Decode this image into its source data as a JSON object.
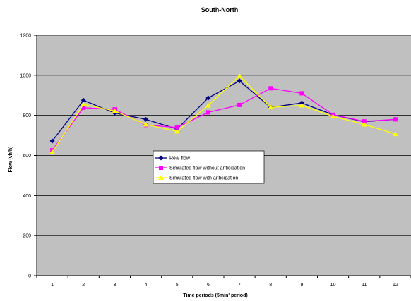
{
  "chart_data": {
    "type": "line",
    "title": "South-North",
    "xlabel": "Time periods (5min' period)",
    "ylabel": "Flow (vh/h)",
    "categories": [
      "1",
      "2",
      "3",
      "4",
      "5",
      "6",
      "7",
      "8",
      "9",
      "10",
      "11",
      "12"
    ],
    "ylim": [
      0,
      1200
    ],
    "yticks": [
      0,
      200,
      400,
      600,
      800,
      1000,
      1200
    ],
    "grid": true,
    "legend_position": "center",
    "plot_background": "#c0c0c0",
    "series": [
      {
        "name": "Real flow",
        "color": "#000080",
        "marker": "diamond",
        "values": [
          672,
          875,
          812,
          780,
          732,
          887,
          972,
          840,
          862,
          803,
          768,
          780
        ]
      },
      {
        "name": "Simulated flow without anticipation",
        "color": "#ff00ff",
        "marker": "square",
        "values": [
          626,
          838,
          830,
          752,
          740,
          815,
          852,
          935,
          910,
          803,
          770,
          780
        ]
      },
      {
        "name": "Simulated flow with anticipation",
        "color": "#ffff00",
        "marker": "triangle",
        "values": [
          617,
          855,
          822,
          755,
          720,
          850,
          997,
          840,
          850,
          795,
          755,
          707
        ]
      }
    ]
  }
}
